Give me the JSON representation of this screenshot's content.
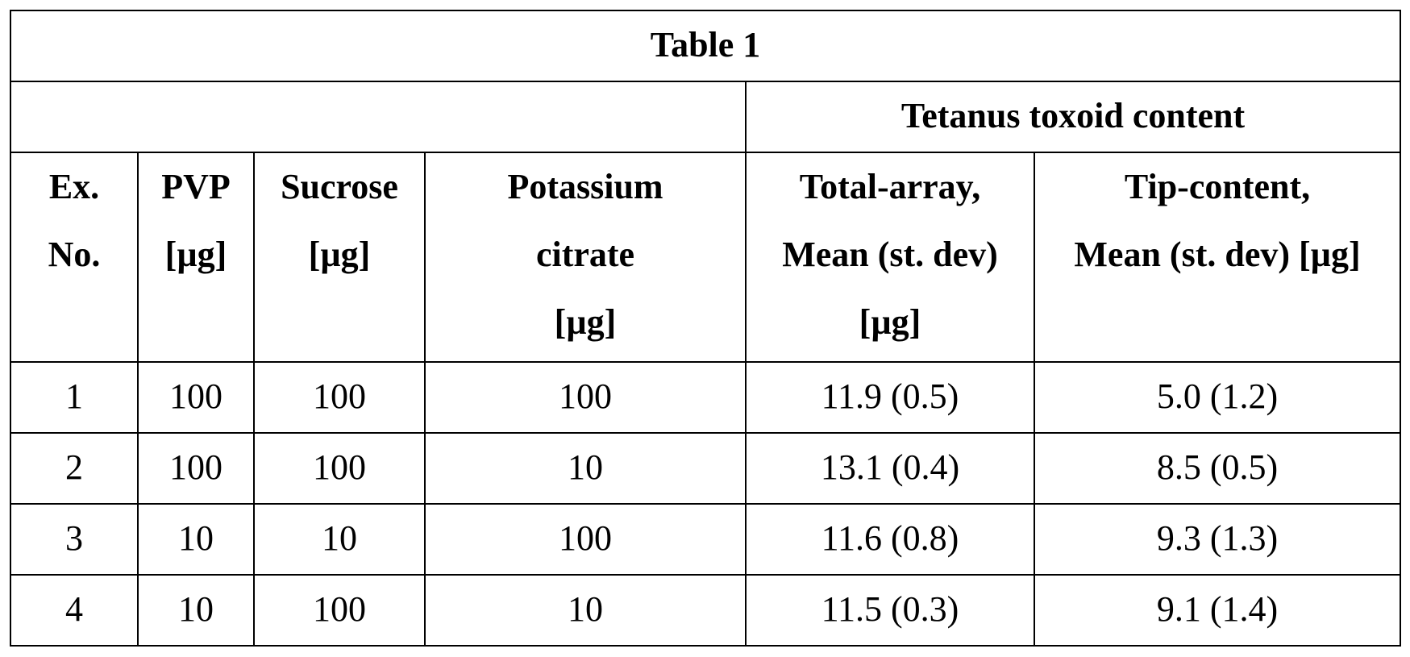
{
  "table": {
    "caption": "Table 1",
    "group_header": "Tetanus toxoid content",
    "columns": [
      {
        "line1": "Ex.",
        "line2": "No.",
        "line3": ""
      },
      {
        "line1": "PVP",
        "line2": "[µg]",
        "line3": ""
      },
      {
        "line1": "Sucrose",
        "line2": "[µg]",
        "line3": ""
      },
      {
        "line1": "Potassium",
        "line2": "citrate",
        "line3": "[µg]"
      },
      {
        "line1": "Total-array,",
        "line2": "Mean (st. dev)",
        "line3": "[µg]"
      },
      {
        "line1": "Tip-content,",
        "line2": "Mean (st. dev) [µg]",
        "line3": ""
      }
    ],
    "rows": [
      [
        "1",
        "100",
        "100",
        "100",
        "11.9 (0.5)",
        "5.0 (1.2)"
      ],
      [
        "2",
        "100",
        "100",
        "10",
        "13.1 (0.4)",
        "8.5 (0.5)"
      ],
      [
        "3",
        "10",
        "10",
        "100",
        "11.6 (0.8)",
        "9.3 (1.3)"
      ],
      [
        "4",
        "10",
        "100",
        "10",
        "11.5 (0.3)",
        "9.1 (1.4)"
      ]
    ]
  }
}
